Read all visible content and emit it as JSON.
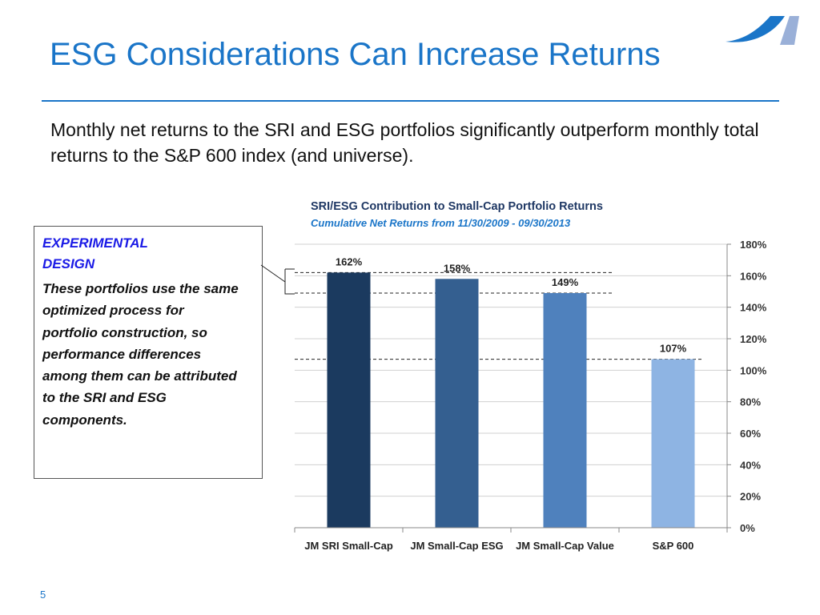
{
  "slide": {
    "title": "ESG Considerations Can Increase Returns",
    "subtitle": "Monthly net returns to the SRI and ESG portfolios significantly outperform monthly total returns to the S&P 600 index (and universe).",
    "page_number": "5",
    "accent_color": "#1a75c8"
  },
  "callout": {
    "heading": "EXPERIMENTAL DESIGN",
    "body": "These portfolios use the same optimized process for portfolio construction, so performance differences among them can be attributed to the SRI and ESG components."
  },
  "chart_data": {
    "type": "bar",
    "title": "SRI/ESG Contribution to Small-Cap Portfolio Returns",
    "subtitle": "Cumulative  Net Returns from 11/30/2009 - 09/30/2013",
    "categories": [
      "JM SRI Small-Cap",
      "JM Small-Cap ESG",
      "JM Small-Cap Value",
      "S&P 600"
    ],
    "values": [
      162,
      158,
      149,
      107
    ],
    "data_labels": [
      "162%",
      "158%",
      "149%",
      "107%"
    ],
    "bar_colors": [
      "#1b3a5f",
      "#345f90",
      "#4f81bd",
      "#8eb4e3"
    ],
    "ylim": [
      0,
      180
    ],
    "yticks": [
      "0%",
      "20%",
      "40%",
      "60%",
      "80%",
      "100%",
      "120%",
      "140%",
      "160%",
      "180%"
    ],
    "y_axis_position": "right",
    "grid": true,
    "reference_lines": [
      162,
      149,
      107
    ]
  }
}
